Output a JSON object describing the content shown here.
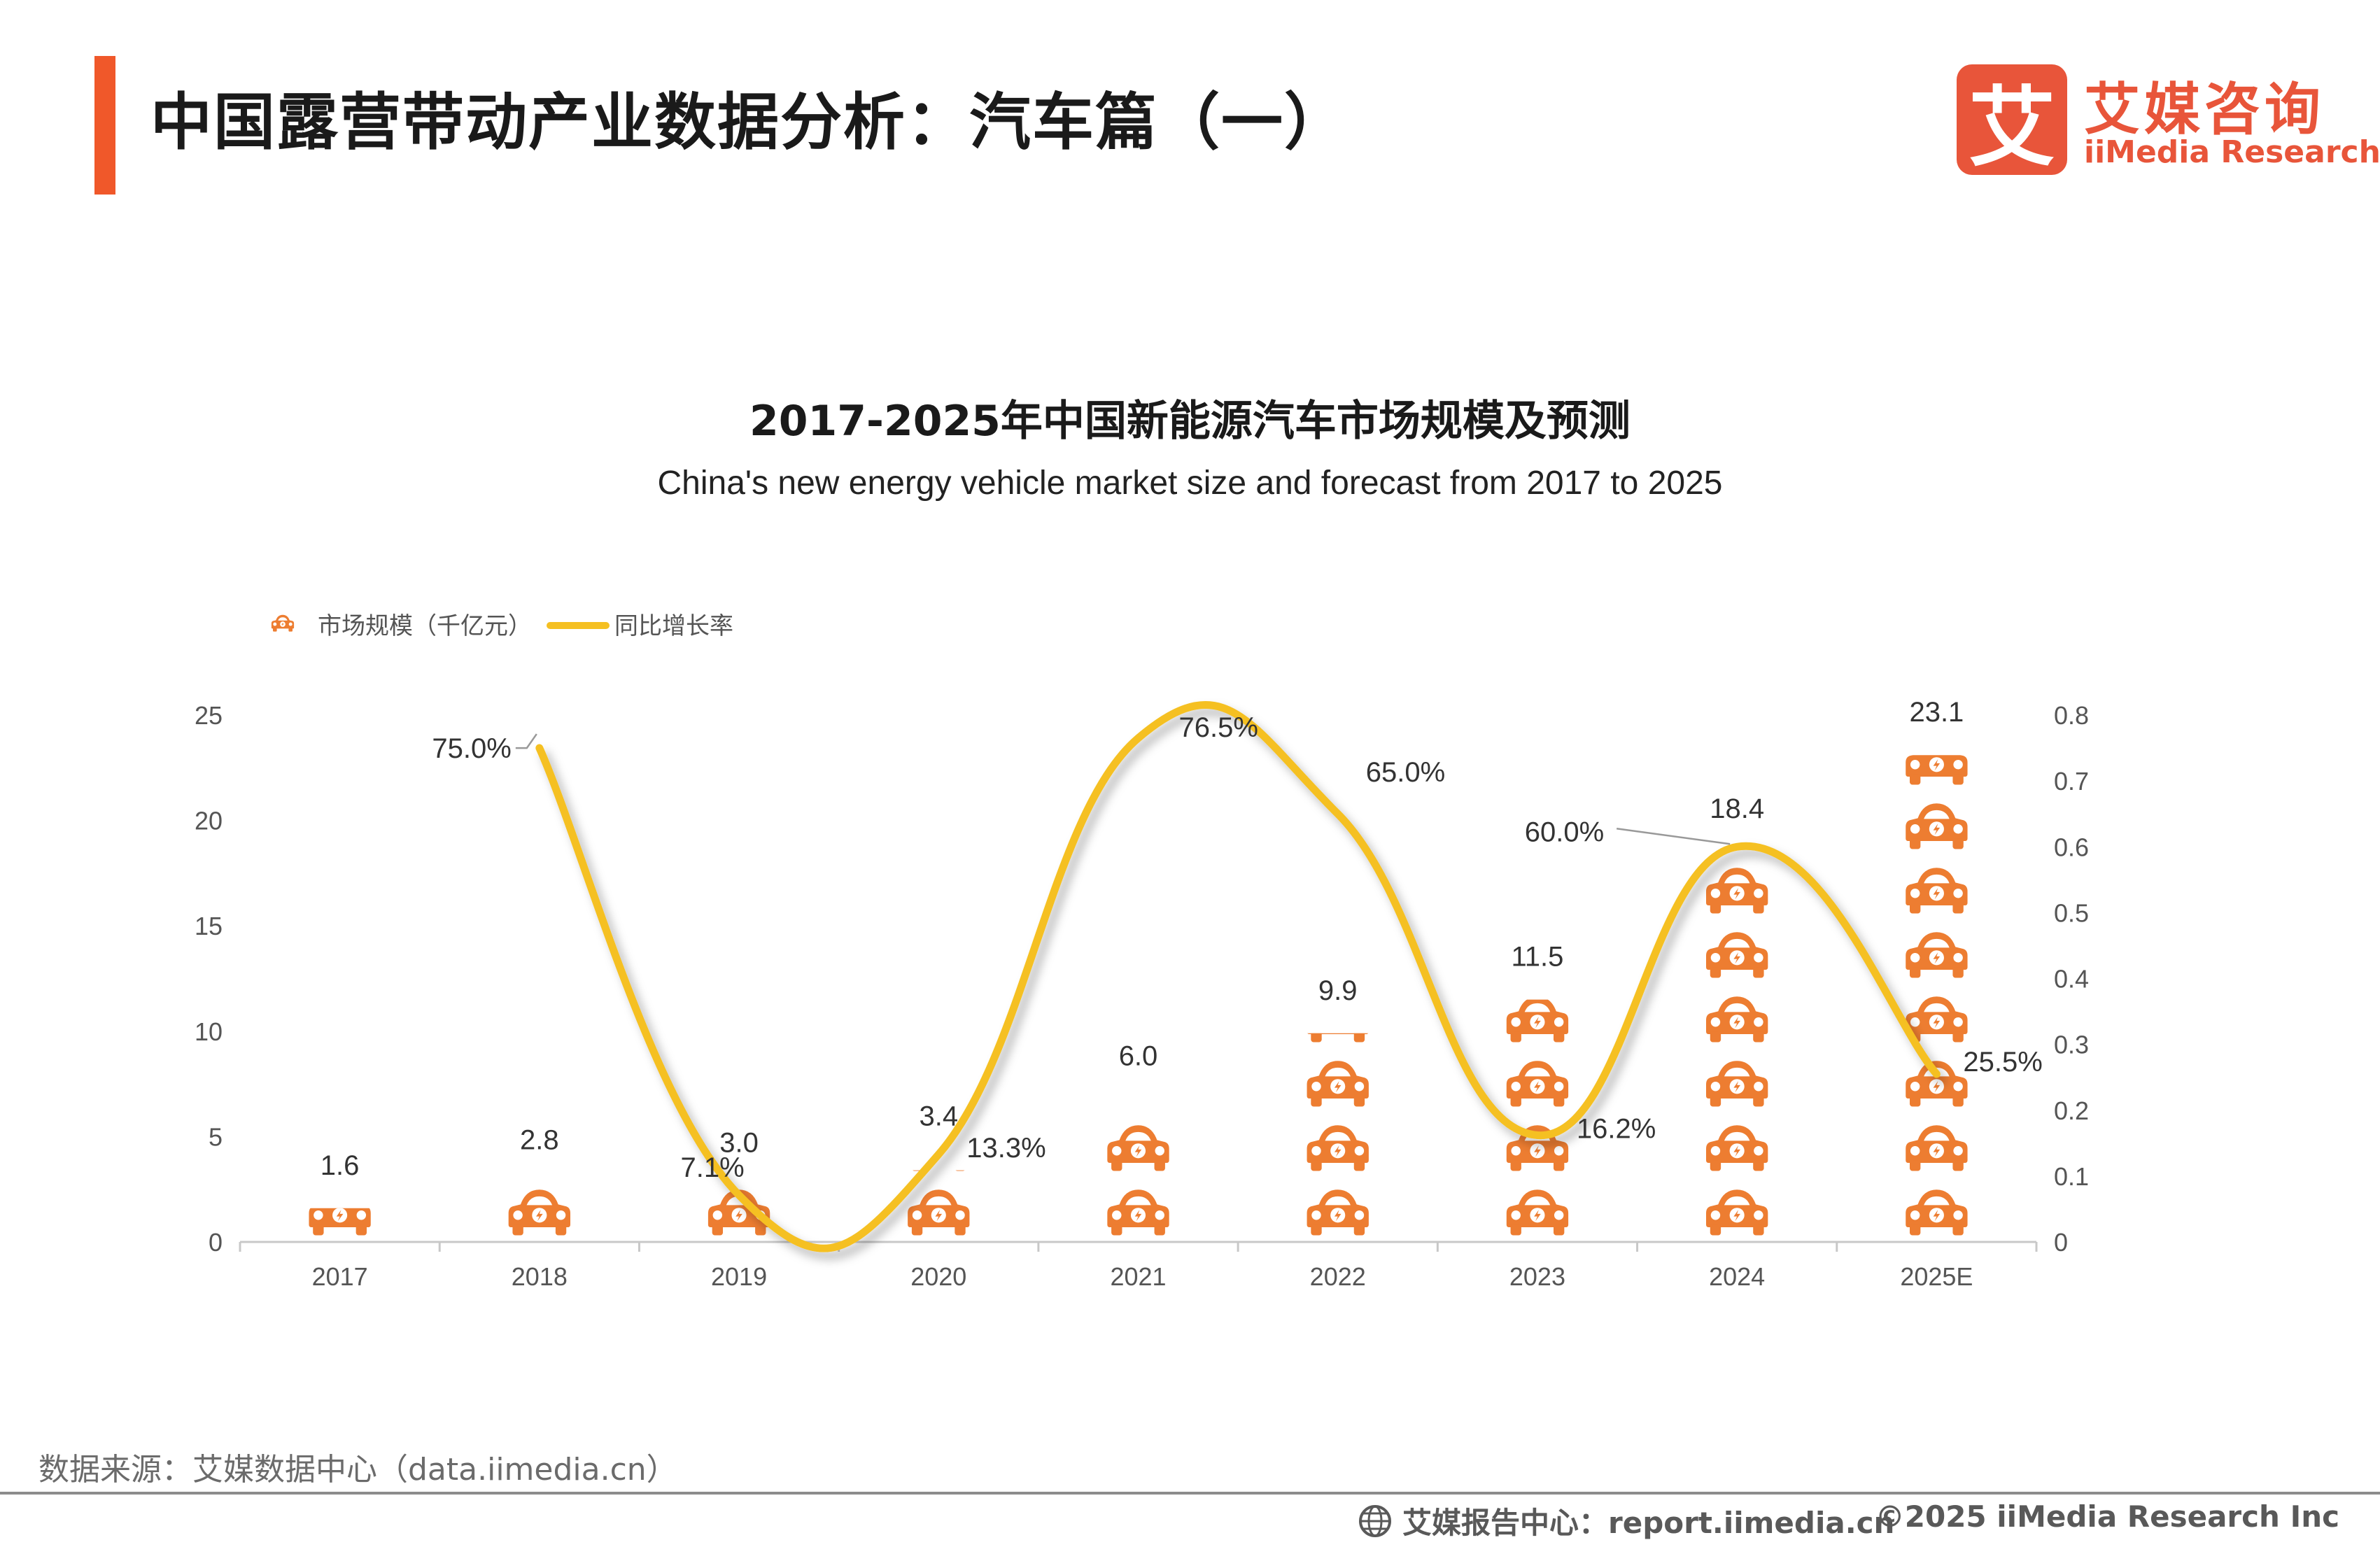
{
  "page": {
    "title": "中国露营带动产业数据分析：汽车篇（一）",
    "accent_color": "#f0582a"
  },
  "logo": {
    "mark": "艾",
    "name_cn": "艾媒咨询",
    "name_en": "iiMedia Research",
    "color": "#e8553a"
  },
  "footer": {
    "source": "数据来源：艾媒数据中心（data.iimedia.cn）",
    "report": "艾媒报告中心：report.iimedia.cn",
    "copyright": "©2025  iiMedia Research  Inc"
  },
  "chart_data": {
    "type": "bar",
    "title": "2017-2025年中国新能源汽车市场规模及预测",
    "subtitle": "China's new energy vehicle market size and forecast from 2017 to 2025",
    "categories": [
      "2017",
      "2018",
      "2019",
      "2020",
      "2021",
      "2022",
      "2023",
      "2024",
      "2025E"
    ],
    "series": [
      {
        "name": "市场规模（千亿元）",
        "kind": "pictograph-bar",
        "axis": "left",
        "color": "#ed7d31",
        "values": [
          1.6,
          2.8,
          3.0,
          3.4,
          6.0,
          9.9,
          11.5,
          18.4,
          23.1
        ],
        "labels": [
          "1.6",
          "2.8",
          "3.0",
          "3.4",
          "6.0",
          "9.9",
          "11.5",
          "18.4",
          "23.1"
        ]
      },
      {
        "name": "同比增长率",
        "kind": "smooth-line",
        "axis": "right",
        "color": "#f5c022",
        "values": [
          null,
          0.75,
          0.071,
          0.133,
          0.765,
          0.65,
          0.162,
          0.6,
          0.255
        ],
        "labels": [
          "",
          "75.0%",
          "7.1%",
          "13.3%",
          "76.5%",
          "65.0%",
          "16.2%",
          "60.0%",
          "25.5%"
        ]
      }
    ],
    "left_axis": {
      "min": 0,
      "max": 25,
      "ticks": [
        "0",
        "5",
        "10",
        "15",
        "20",
        "25"
      ]
    },
    "right_axis": {
      "min": 0,
      "max": 0.8,
      "ticks": [
        "0",
        "0.1",
        "0.2",
        "0.3",
        "0.4",
        "0.5",
        "0.6",
        "0.7",
        "0.8"
      ]
    },
    "legend_position": "top-left",
    "grid": false
  }
}
